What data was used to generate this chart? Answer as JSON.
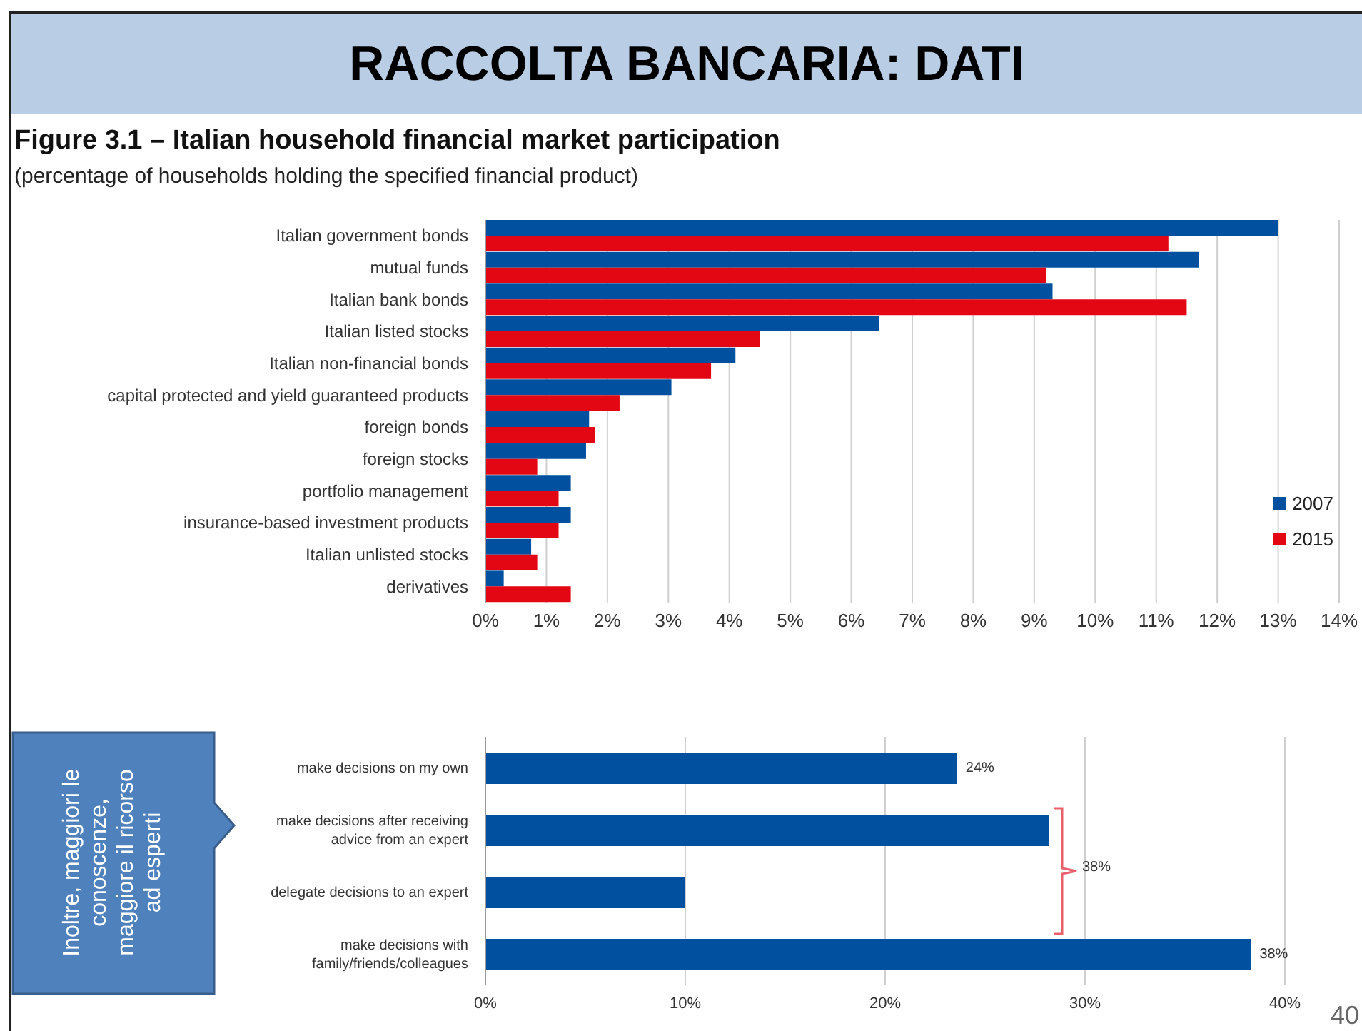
{
  "chart_data": [
    {
      "type": "bar",
      "orientation": "horizontal",
      "title": "Figure 3.1 – Italian household financial market participation",
      "subtitle": "(percentage of households holding the specified financial product)",
      "annotations": [
        "RACCOLTA BANCARIA: DATI"
      ],
      "categories": [
        "Italian government bonds",
        "mutual funds",
        "Italian bank bonds",
        "Italian listed stocks",
        "Italian non-financial bonds",
        "capital protected and yield guaranteed products",
        "foreign bonds",
        "foreign stocks",
        "portfolio management",
        "insurance-based investment products",
        "Italian unlisted stocks",
        "derivatives"
      ],
      "series": [
        {
          "name": "2007",
          "color": "#0050a0",
          "values": [
            13.0,
            11.7,
            9.3,
            6.45,
            4.1,
            3.05,
            1.7,
            1.65,
            1.4,
            1.4,
            0.75,
            0.3
          ]
        },
        {
          "name": "2015",
          "color": "#e30613",
          "values": [
            11.2,
            9.2,
            11.5,
            4.5,
            3.7,
            2.2,
            1.8,
            0.85,
            1.2,
            1.2,
            0.85,
            1.4
          ]
        }
      ],
      "xlim": [
        0,
        14
      ],
      "xticks": [
        {
          "value": 0,
          "label": "0%"
        },
        {
          "value": 1,
          "label": "1%"
        },
        {
          "value": 2,
          "label": "2%"
        },
        {
          "value": 3,
          "label": "3%"
        },
        {
          "value": 4,
          "label": "4%"
        },
        {
          "value": 5,
          "label": "5%"
        },
        {
          "value": 6,
          "label": "6%"
        },
        {
          "value": 7,
          "label": "7%"
        },
        {
          "value": 8,
          "label": "8%"
        },
        {
          "value": 9,
          "label": "9%"
        },
        {
          "value": 10,
          "label": "10%"
        },
        {
          "value": 11,
          "label": "11%"
        },
        {
          "value": 12,
          "label": "12%"
        },
        {
          "value": 13,
          "label": "13%"
        },
        {
          "value": 14,
          "label": "14%"
        }
      ],
      "grid": "x",
      "legend": "right"
    },
    {
      "type": "bar",
      "orientation": "horizontal",
      "annotations": [
        "Inoltre, maggiori le conoscenze, maggiore il ricorso ad esperti",
        "38%",
        "40"
      ],
      "categories": [
        "make decisions on my own",
        "make decisions after receiving advice from an expert",
        "delegate decisions to an expert",
        "make decisions with family/friends/colleagues"
      ],
      "values": [
        23.6,
        28.2,
        10.0,
        38.3
      ],
      "color": "#0050a0",
      "value_labels": [
        "24%",
        null,
        null,
        "38%"
      ],
      "xlim": [
        0,
        40
      ],
      "xticks": [
        {
          "value": 0,
          "label": "0%"
        },
        {
          "value": 10,
          "label": "10%"
        },
        {
          "value": 20,
          "label": "20%"
        },
        {
          "value": 30,
          "label": "30%"
        },
        {
          "value": 40,
          "label": "40%"
        }
      ],
      "grid": "x"
    }
  ]
}
